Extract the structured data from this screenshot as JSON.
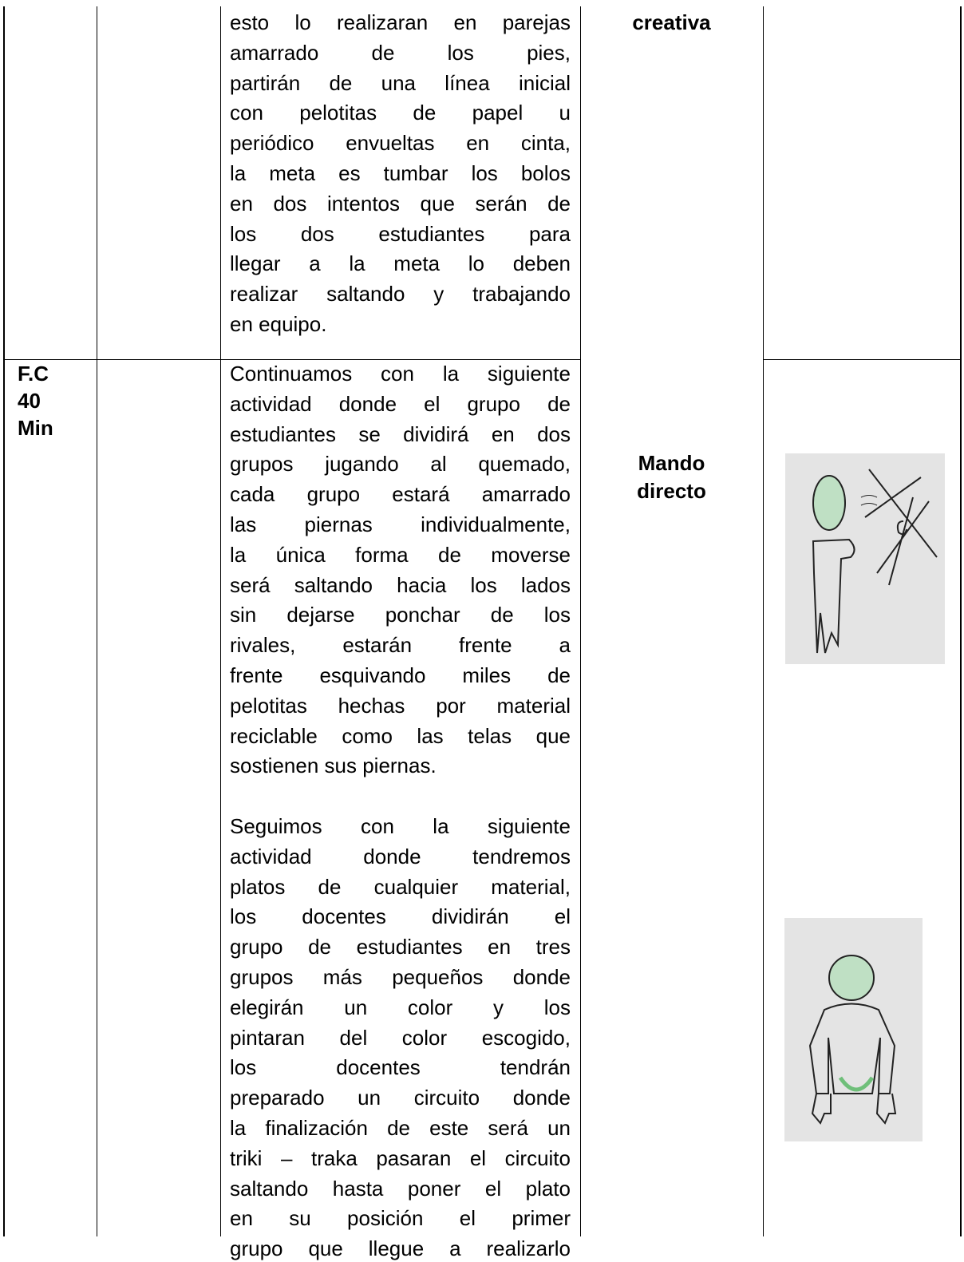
{
  "row1": {
    "activity_lines": [
      "esto lo realizaran en parejas",
      "amarrado de los pies,",
      "partirán de una línea inicial",
      "con pelotitas de papel u",
      "periódico envueltas en cinta,",
      "la meta es tumbar los bolos",
      "en dos intentos que serán de",
      "los dos estudiantes para",
      "llegar a la meta lo deben",
      "realizar saltando y trabajando",
      "en equipo."
    ],
    "method": "creativa"
  },
  "row2": {
    "time": [
      "F.C",
      "40",
      "Min"
    ],
    "activity_paragraphs": [
      [
        "Continuamos con la siguiente",
        "actividad donde el grupo de",
        "estudiantes se dividirá en dos",
        "grupos jugando al quemado,",
        "cada grupo estará amarrado",
        "las piernas individualmente,",
        "la única forma de moverse",
        "será saltando hacia los lados",
        "sin dejarse ponchar de los",
        "rivales, estarán frente a",
        "frente esquivando miles de",
        "pelotitas hechas por material",
        "reciclable como las telas que",
        "sostienen sus piernas."
      ],
      [
        "Seguimos con la siguiente",
        "actividad donde tendremos",
        "platos de cualquier material,",
        "los docentes dividirán el",
        "grupo de estudiantes en tres",
        "grupos más pequeños donde",
        "elegirán un color y los",
        "pintaran del color escogido,",
        "los docentes tendrán",
        "preparado un circuito donde",
        "la finalización de este será un",
        "triki – traka pasaran el circuito",
        "saltando hasta poner el plato",
        "en su posición el primer",
        "grupo que llegue a realizarlo"
      ]
    ],
    "method": [
      "Mando",
      "directo"
    ]
  }
}
